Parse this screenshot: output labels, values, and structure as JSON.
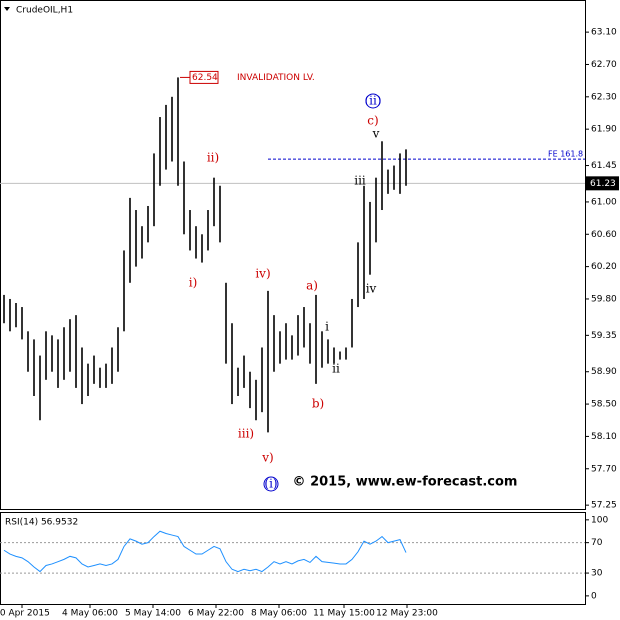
{
  "chart_data": {
    "type": "ohlc",
    "title": "CrudeOIL,H1",
    "color": "#000000",
    "high": [
      59.85,
      59.8,
      59.75,
      59.7,
      59.4,
      59.3,
      59.1,
      59.4,
      59.35,
      59.3,
      59.45,
      59.55,
      59.6,
      59.2,
      59.0,
      59.1,
      58.95,
      59.0,
      59.2,
      59.45,
      60.4,
      61.05,
      60.9,
      60.7,
      60.95,
      61.6,
      62.05,
      62.2,
      62.3,
      62.54,
      61.5,
      60.9,
      60.7,
      60.6,
      60.9,
      61.3,
      61.2,
      60.0,
      59.5,
      58.95,
      59.1,
      58.9,
      58.8,
      59.2,
      59.9,
      59.6,
      59.4,
      59.5,
      59.35,
      59.6,
      59.7,
      59.5,
      59.85,
      59.4,
      59.3,
      59.2,
      59.15,
      59.2,
      59.8,
      60.5,
      61.2,
      61.0,
      61.3,
      61.75,
      61.4,
      61.45,
      61.6,
      61.65
    ],
    "low": [
      59.5,
      59.4,
      59.45,
      59.3,
      58.9,
      58.6,
      58.3,
      58.8,
      58.9,
      58.7,
      58.8,
      58.9,
      58.7,
      58.5,
      58.6,
      58.75,
      58.7,
      58.7,
      58.75,
      58.9,
      59.4,
      60.0,
      60.2,
      60.3,
      60.5,
      60.7,
      61.2,
      61.4,
      61.5,
      61.2,
      60.6,
      60.4,
      60.3,
      60.25,
      60.4,
      60.7,
      60.5,
      59.0,
      58.5,
      58.6,
      58.7,
      58.45,
      58.3,
      58.4,
      58.15,
      58.9,
      59.0,
      59.05,
      59.05,
      59.1,
      59.2,
      59.0,
      58.75,
      58.95,
      59.0,
      59.0,
      59.05,
      59.05,
      59.2,
      59.7,
      59.8,
      60.1,
      60.5,
      60.9,
      61.1,
      61.15,
      61.1,
      61.2
    ],
    "ylim": [
      57.19,
      63.485
    ],
    "yticks": [
      {
        "value": 63.1,
        "label": "63.10"
      },
      {
        "value": 62.7,
        "label": "62.70"
      },
      {
        "value": 62.3,
        "label": "62.30"
      },
      {
        "value": 61.9,
        "label": "61.90"
      },
      {
        "value": 61.45,
        "label": "61.45"
      },
      {
        "value": 61.0,
        "label": "61.00"
      },
      {
        "value": 60.6,
        "label": "60.60"
      },
      {
        "value": 60.2,
        "label": "60.20"
      },
      {
        "value": 59.8,
        "label": "59.80"
      },
      {
        "value": 59.35,
        "label": "59.35"
      },
      {
        "value": 58.9,
        "label": "58.90"
      },
      {
        "value": 58.5,
        "label": "58.50"
      },
      {
        "value": 58.1,
        "label": "58.10"
      },
      {
        "value": 57.7,
        "label": "57.70"
      },
      {
        "value": 57.25,
        "label": "57.25"
      }
    ],
    "last_price": 61.23,
    "invalidation": 62.54,
    "invalidation_label": "INVALIDATION LV.",
    "fe_level": 61.53,
    "fe_label": "FE 161.8",
    "annotations": [
      {
        "text": "(ii)",
        "color": "#0000cc"
      },
      {
        "text": "c)",
        "color": "#cc0000"
      },
      {
        "text": "v",
        "color": "#000000"
      },
      {
        "text": "iii",
        "color": "#000000"
      },
      {
        "text": "ii)",
        "color": "#cc0000"
      },
      {
        "text": "i)",
        "color": "#cc0000"
      },
      {
        "text": "iv)",
        "color": "#cc0000"
      },
      {
        "text": "a)",
        "color": "#cc0000"
      },
      {
        "text": "i",
        "color": "#000000"
      },
      {
        "text": "iv",
        "color": "#000000"
      },
      {
        "text": "ii",
        "color": "#000000"
      },
      {
        "text": "b)",
        "color": "#cc0000"
      },
      {
        "text": "iii)",
        "color": "#cc0000"
      },
      {
        "text": "v)",
        "color": "#cc0000"
      },
      {
        "text": "(i)",
        "color": "#0000cc"
      }
    ],
    "copyright": "© 2015, www.ew-forecast.com",
    "x_labels": [
      "30 Apr 2015",
      "4 May 06:00",
      "5 May 14:00",
      "6 May 22:00",
      "8 May 06:00",
      "11 May 15:00",
      "12 May 23:00"
    ],
    "rsi": {
      "title": "RSI(14) 56.9532",
      "color": "#1e90ff",
      "values": [
        60,
        55,
        52,
        50,
        45,
        38,
        32,
        40,
        42,
        45,
        48,
        52,
        50,
        42,
        38,
        40,
        42,
        40,
        42,
        48,
        65,
        75,
        72,
        68,
        70,
        78,
        85,
        82,
        80,
        78,
        65,
        60,
        55,
        55,
        60,
        65,
        62,
        45,
        35,
        32,
        35,
        33,
        35,
        32,
        38,
        45,
        42,
        45,
        42,
        46,
        48,
        44,
        52,
        45,
        44,
        43,
        42,
        42,
        48,
        58,
        72,
        68,
        72,
        78,
        70,
        72,
        74,
        56.95
      ],
      "ylim": [
        -12,
        109
      ],
      "yticks": [
        100,
        70,
        30,
        0
      ],
      "levels": [
        70,
        30
      ]
    }
  }
}
